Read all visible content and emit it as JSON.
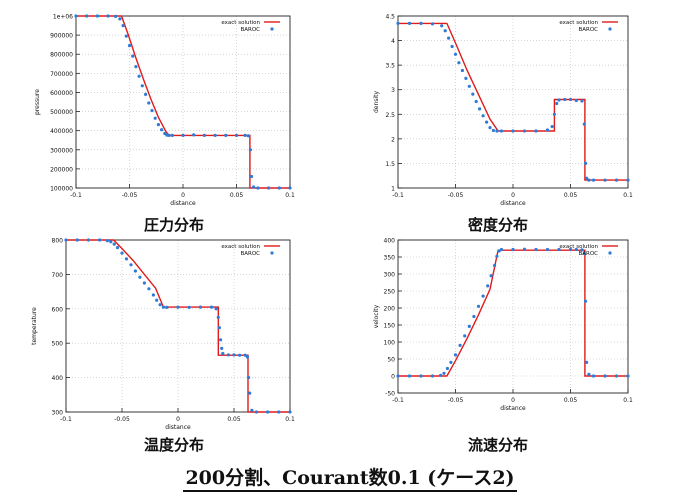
{
  "footer_title": "200分割、Courant数0.1 (ケース2)",
  "captions": [
    "圧力分布",
    "密度分布",
    "温度分布",
    "流速分布"
  ],
  "colors": {
    "exact": "#e01b1b",
    "baroc": "#2f7bd8",
    "grid": "#bdbdbd",
    "axis": "#222222"
  },
  "chart_data": [
    {
      "type": "line",
      "caption": "圧力分布",
      "xlabel": "distance",
      "ylabel": "pressure",
      "xlim": [
        -0.1,
        0.1
      ],
      "ylim": [
        100000,
        1000000
      ],
      "xticks": [
        "-0.1",
        "-0.05",
        "0",
        "0.05",
        "0.1"
      ],
      "yticks": [
        "100000",
        "200000",
        "300000",
        "400000",
        "500000",
        "600000",
        "700000",
        "800000",
        "900000",
        "1e+06"
      ],
      "grid": true,
      "legend_position": "top-right",
      "series": [
        {
          "name": "exact solution",
          "style": "line",
          "x": [
            -0.1,
            -0.0575,
            -0.051,
            -0.044,
            -0.037,
            -0.03,
            -0.023,
            -0.016,
            -0.013,
            0.0,
            0.04,
            0.0625,
            0.0625,
            0.1
          ],
          "y": [
            1000000,
            1000000,
            900000,
            780000,
            670000,
            565000,
            470000,
            395000,
            375000,
            375000,
            375000,
            375000,
            100000,
            100000
          ]
        },
        {
          "name": "BAROC",
          "style": "points",
          "x": [
            -0.1,
            -0.09,
            -0.08,
            -0.07,
            -0.063,
            -0.059,
            -0.056,
            -0.053,
            -0.05,
            -0.047,
            -0.044,
            -0.041,
            -0.038,
            -0.035,
            -0.032,
            -0.029,
            -0.026,
            -0.023,
            -0.02,
            -0.017,
            -0.015,
            -0.013,
            -0.01,
            0.0,
            0.01,
            0.02,
            0.03,
            0.04,
            0.05,
            0.058,
            0.061,
            0.063,
            0.064,
            0.066,
            0.07,
            0.08,
            0.09,
            0.1
          ],
          "y": [
            1000000,
            1000000,
            1000000,
            1000000,
            998000,
            985000,
            950000,
            895000,
            845000,
            790000,
            735000,
            685000,
            635000,
            590000,
            545000,
            505000,
            465000,
            432000,
            405000,
            385000,
            377000,
            375000,
            375000,
            375000,
            378000,
            375000,
            375000,
            375000,
            375000,
            375000,
            373000,
            300000,
            160000,
            105000,
            100000,
            100000,
            100000,
            100000
          ]
        }
      ]
    },
    {
      "type": "line",
      "caption": "密度分布",
      "xlabel": "distance",
      "ylabel": "density",
      "xlim": [
        -0.1,
        0.1
      ],
      "ylim": [
        1,
        4.5
      ],
      "xticks": [
        "-0.1",
        "-0.05",
        "0",
        "0.05",
        "0.1"
      ],
      "yticks": [
        "1",
        "1.5",
        "2",
        "2.5",
        "3",
        "3.5",
        "4",
        "4.5"
      ],
      "grid": true,
      "legend_position": "top-right",
      "series": [
        {
          "name": "exact solution",
          "style": "line",
          "x": [
            -0.1,
            -0.0575,
            -0.05,
            -0.04,
            -0.03,
            -0.02,
            -0.013,
            0.0,
            0.036,
            0.036,
            0.0625,
            0.0625,
            0.1
          ],
          "y": [
            4.35,
            4.35,
            3.95,
            3.4,
            2.9,
            2.4,
            2.16,
            2.16,
            2.16,
            2.8,
            2.8,
            1.16,
            1.16
          ]
        },
        {
          "name": "BAROC",
          "style": "points",
          "x": [
            -0.1,
            -0.09,
            -0.08,
            -0.07,
            -0.062,
            -0.059,
            -0.056,
            -0.053,
            -0.05,
            -0.047,
            -0.044,
            -0.041,
            -0.038,
            -0.035,
            -0.032,
            -0.029,
            -0.026,
            -0.023,
            -0.02,
            -0.017,
            -0.014,
            -0.01,
            0.0,
            0.01,
            0.02,
            0.03,
            0.034,
            0.036,
            0.038,
            0.04,
            0.045,
            0.05,
            0.055,
            0.06,
            0.062,
            0.063,
            0.064,
            0.066,
            0.07,
            0.08,
            0.09,
            0.1
          ],
          "y": [
            4.35,
            4.35,
            4.35,
            4.34,
            4.3,
            4.2,
            4.05,
            3.88,
            3.72,
            3.55,
            3.39,
            3.23,
            3.07,
            2.91,
            2.76,
            2.61,
            2.47,
            2.34,
            2.23,
            2.17,
            2.16,
            2.16,
            2.16,
            2.16,
            2.16,
            2.18,
            2.25,
            2.5,
            2.72,
            2.79,
            2.8,
            2.8,
            2.78,
            2.77,
            2.3,
            1.5,
            1.2,
            1.16,
            1.16,
            1.16,
            1.16,
            1.16
          ]
        }
      ]
    },
    {
      "type": "line",
      "caption": "温度分布",
      "xlabel": "distance",
      "ylabel": "temperature",
      "xlim": [
        -0.1,
        0.1
      ],
      "ylim": [
        300,
        800
      ],
      "xticks": [
        "-0.1",
        "-0.05",
        "0",
        "0.05",
        "0.1"
      ],
      "yticks": [
        "300",
        "400",
        "500",
        "600",
        "700",
        "800"
      ],
      "grid": true,
      "legend_position": "top-right",
      "series": [
        {
          "name": "exact solution",
          "style": "line",
          "x": [
            -0.1,
            -0.0575,
            -0.05,
            -0.04,
            -0.03,
            -0.02,
            -0.013,
            0.0,
            0.036,
            0.036,
            0.0625,
            0.0625,
            0.1
          ],
          "y": [
            800,
            800,
            775,
            740,
            700,
            660,
            605,
            605,
            605,
            465,
            465,
            300,
            300
          ]
        },
        {
          "name": "BAROC",
          "style": "points",
          "x": [
            -0.1,
            -0.09,
            -0.08,
            -0.07,
            -0.063,
            -0.06,
            -0.057,
            -0.054,
            -0.05,
            -0.046,
            -0.042,
            -0.038,
            -0.034,
            -0.03,
            -0.026,
            -0.022,
            -0.019,
            -0.016,
            -0.013,
            -0.01,
            0.0,
            0.01,
            0.02,
            0.03,
            0.034,
            0.036,
            0.037,
            0.038,
            0.039,
            0.04,
            0.045,
            0.05,
            0.055,
            0.06,
            0.062,
            0.063,
            0.064,
            0.066,
            0.07,
            0.08,
            0.09,
            0.1
          ],
          "y": [
            800,
            800,
            800,
            800,
            798,
            795,
            788,
            778,
            762,
            745,
            728,
            710,
            692,
            675,
            658,
            640,
            625,
            612,
            605,
            604,
            605,
            604,
            605,
            605,
            600,
            575,
            545,
            510,
            485,
            470,
            466,
            466,
            465,
            465,
            460,
            400,
            355,
            305,
            300,
            300,
            300,
            300
          ]
        }
      ]
    },
    {
      "type": "line",
      "caption": "流速分布",
      "xlabel": "distance",
      "ylabel": "velocity",
      "xlim": [
        -0.1,
        0.1
      ],
      "ylim": [
        -50,
        400
      ],
      "xticks": [
        "-0.1",
        "-0.05",
        "0",
        "0.05",
        "0.1"
      ],
      "yticks": [
        "-50",
        "0",
        "50",
        "100",
        "150",
        "200",
        "250",
        "300",
        "350",
        "400"
      ],
      "grid": true,
      "legend_position": "top-right",
      "series": [
        {
          "name": "exact solution",
          "style": "line",
          "x": [
            -0.1,
            -0.0575,
            -0.05,
            -0.04,
            -0.03,
            -0.02,
            -0.013,
            0.0,
            0.0625,
            0.0625,
            0.1
          ],
          "y": [
            0,
            0,
            45,
            110,
            180,
            255,
            370,
            370,
            370,
            0,
            0
          ]
        },
        {
          "name": "BAROC",
          "style": "points",
          "x": [
            -0.1,
            -0.09,
            -0.08,
            -0.07,
            -0.063,
            -0.06,
            -0.057,
            -0.054,
            -0.05,
            -0.046,
            -0.042,
            -0.038,
            -0.034,
            -0.03,
            -0.026,
            -0.022,
            -0.019,
            -0.016,
            -0.014,
            -0.012,
            -0.01,
            0.0,
            0.01,
            0.02,
            0.03,
            0.04,
            0.05,
            0.055,
            0.06,
            0.062,
            0.063,
            0.064,
            0.066,
            0.07,
            0.08,
            0.09,
            0.1
          ],
          "y": [
            0,
            0,
            0,
            0,
            2,
            8,
            22,
            40,
            62,
            90,
            118,
            146,
            175,
            205,
            235,
            265,
            295,
            325,
            352,
            368,
            372,
            372,
            373,
            372,
            372,
            372,
            372,
            372,
            371,
            360,
            220,
            40,
            5,
            0,
            0,
            0,
            0
          ]
        }
      ]
    }
  ]
}
